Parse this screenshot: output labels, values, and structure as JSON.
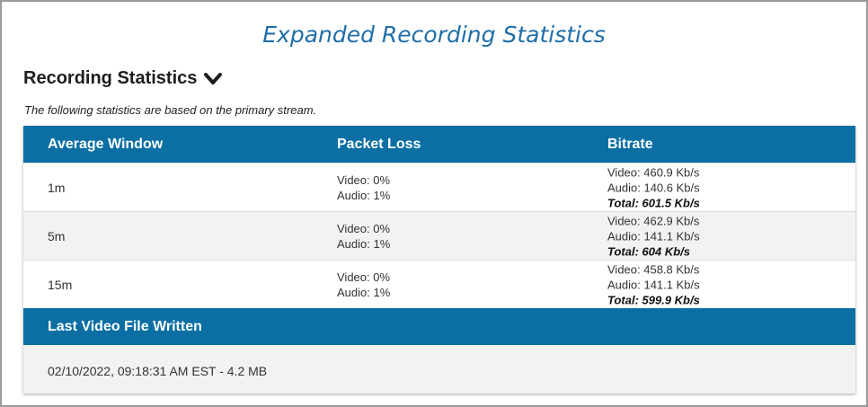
{
  "caption": "Expanded Recording Statistics",
  "section": {
    "title": "Recording Statistics",
    "note": "The following statistics are based on the primary stream."
  },
  "table": {
    "headers": [
      "Average Window",
      "Packet Loss",
      "Bitrate"
    ],
    "rows": [
      {
        "window": "1m",
        "loss_video": "Video: 0%",
        "loss_audio": "Audio: 1%",
        "bitrate_video": "Video: 460.9 Kb/s",
        "bitrate_audio": "Audio: 140.6 Kb/s",
        "bitrate_total": "Total: 601.5 Kb/s"
      },
      {
        "window": "5m",
        "loss_video": "Video: 0%",
        "loss_audio": "Audio: 1%",
        "bitrate_video": "Video: 462.9 Kb/s",
        "bitrate_audio": "Audio: 141.1 Kb/s",
        "bitrate_total": "Total: 604 Kb/s"
      },
      {
        "window": "15m",
        "loss_video": "Video: 0%",
        "loss_audio": "Audio: 1%",
        "bitrate_video": "Video: 458.8 Kb/s",
        "bitrate_audio": "Audio: 141.1 Kb/s",
        "bitrate_total": "Total: 599.9 Kb/s"
      }
    ]
  },
  "last_file": {
    "label": "Last Video File Written",
    "value": "02/10/2022, 09:18:31 AM EST - 4.2 MB"
  },
  "icons": {
    "toggle": "chevron-down-icon"
  },
  "colors": {
    "header_bg": "#0b6fa4",
    "caption": "#1f6ea8"
  }
}
